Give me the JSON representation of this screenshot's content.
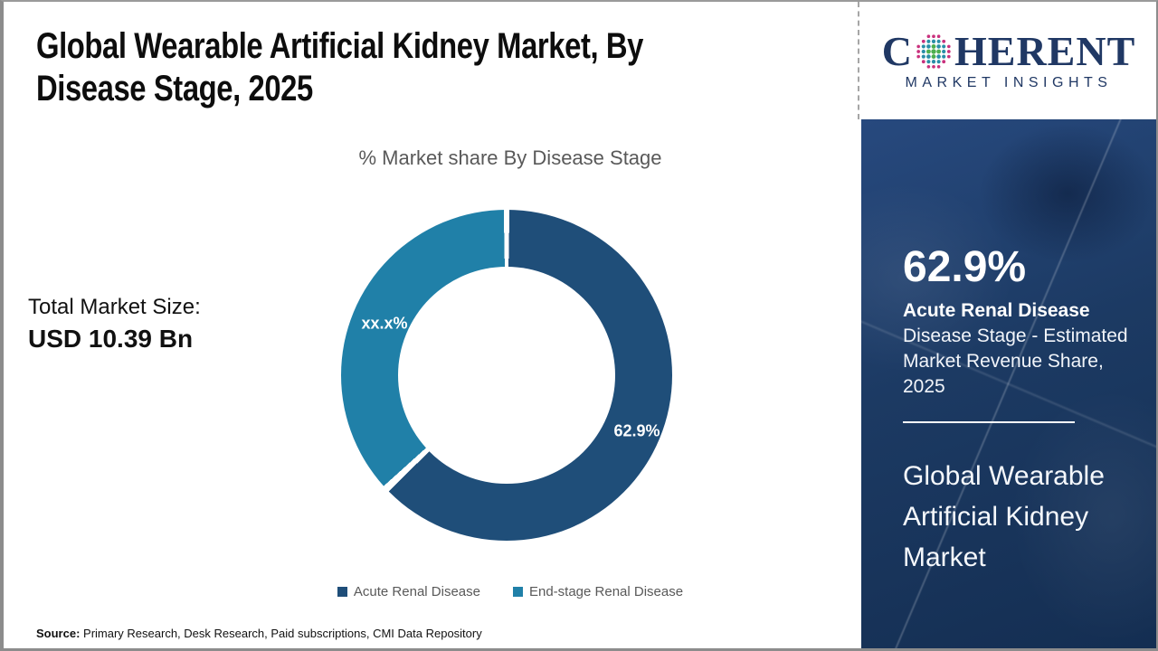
{
  "header": {
    "title_line1": "Global Wearable Artificial Kidney Market, By",
    "title_line2": "Disease Stage, 2025"
  },
  "logo": {
    "text_before_globe": "C",
    "text_after_globe": "HERENT",
    "tagline": "MARKET INSIGHTS",
    "color": "#203864",
    "globe_dot_colors": {
      "inner": "#4caf50",
      "mid": "#2a8fa8",
      "outer": "#c9317d"
    }
  },
  "left_callout": {
    "label": "Total Market Size:",
    "value": "USD 10.39 Bn"
  },
  "chart_data": {
    "type": "pie",
    "donut": true,
    "title": "% Market share By Disease Stage",
    "categories": [
      "Acute Renal Disease",
      "End-stage Renal Disease"
    ],
    "values": [
      62.9,
      37.1
    ],
    "displayed_labels": [
      "62.9%",
      "xx.x%"
    ],
    "colors": [
      "#1f4e79",
      "#2080a8"
    ],
    "legend_position": "bottom",
    "start_angle_deg": 0,
    "direction": "clockwise"
  },
  "sidebar": {
    "bg_color": "#1c3a63",
    "stat_value": "62.9%",
    "stat_name": "Acute Renal Disease",
    "stat_desc": "Disease Stage - Estimated Market Revenue Share, 2025",
    "report_title": "Global Wearable Artificial Kidney Market"
  },
  "source": {
    "label": "Source:",
    "text": " Primary Research, Desk Research, Paid subscriptions, CMI Data Repository"
  }
}
